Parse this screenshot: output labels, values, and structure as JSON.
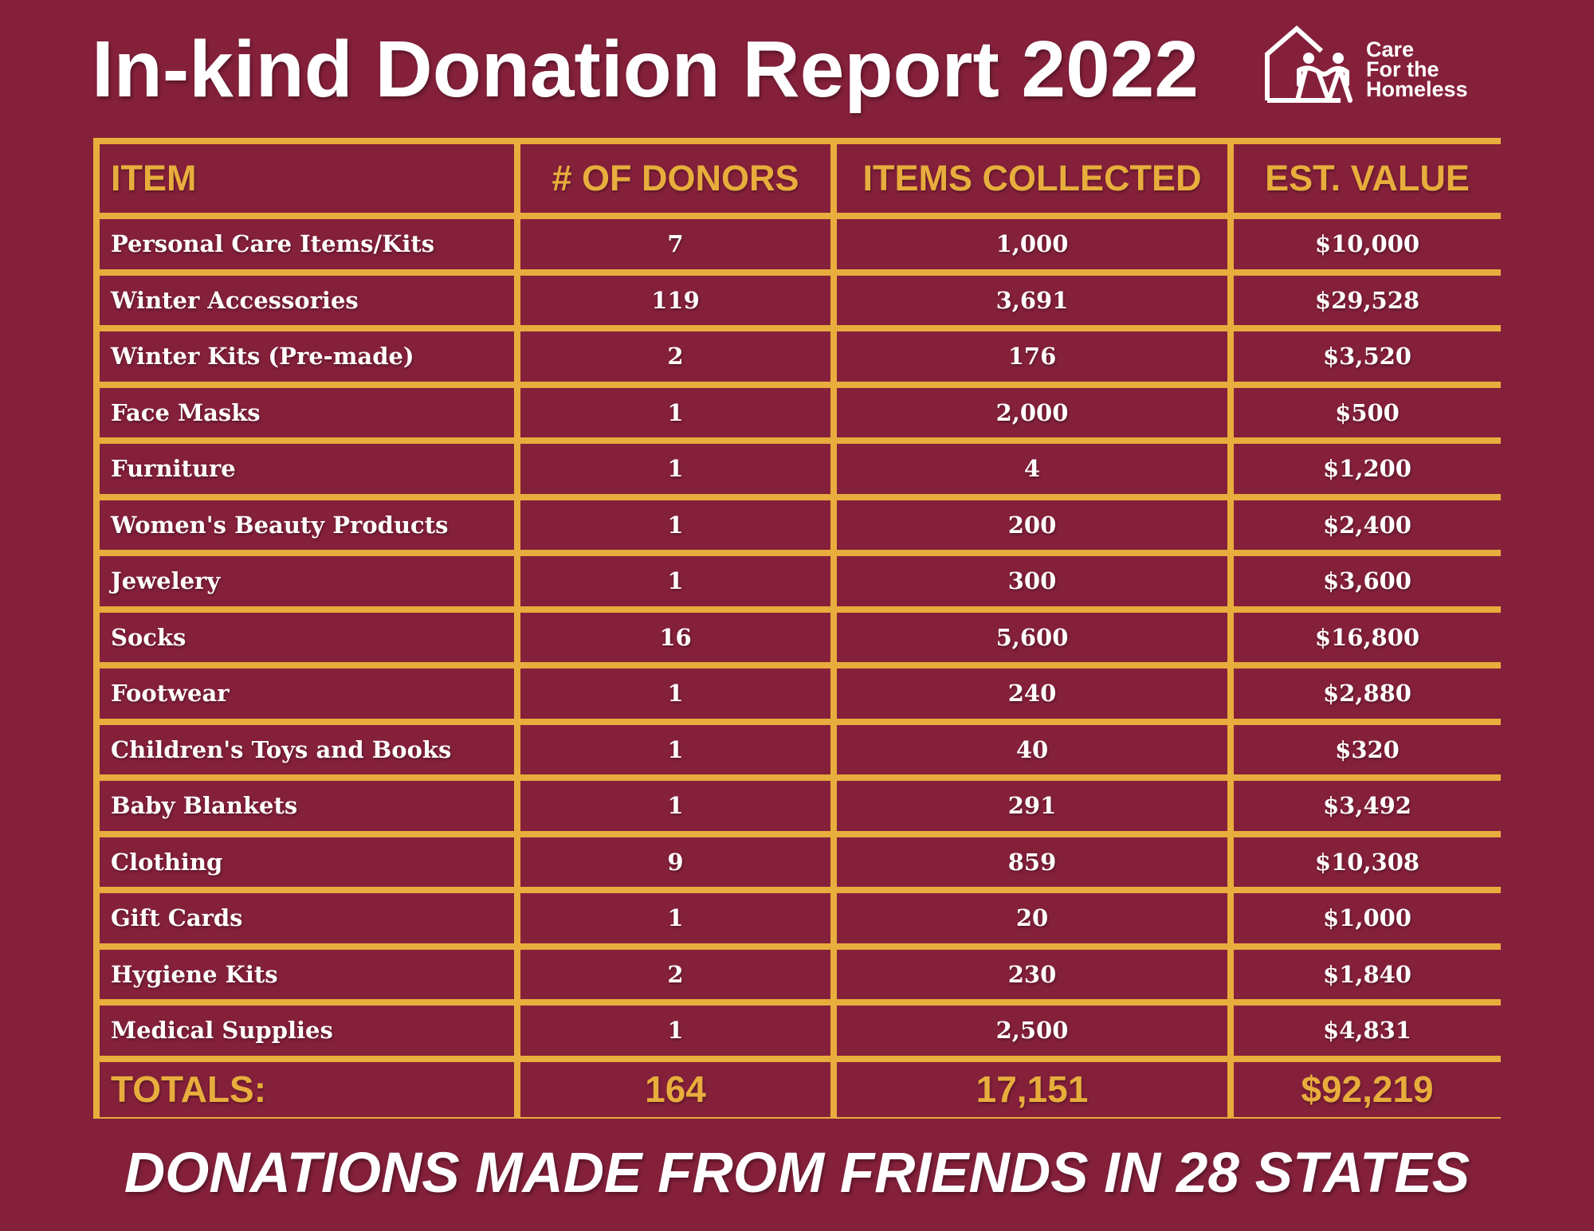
{
  "title": "In-kind Donation Report 2022",
  "logo": {
    "lines": [
      "Care",
      "For the",
      "Homeless"
    ]
  },
  "table": {
    "headers": [
      "ITEM",
      "# OF DONORS",
      "ITEMS COLLECTED",
      "EST. VALUE"
    ],
    "rows": [
      [
        "Personal Care Items/Kits",
        "7",
        "1,000",
        "$10,000"
      ],
      [
        "Winter Accessories",
        "119",
        "3,691",
        "$29,528"
      ],
      [
        "Winter Kits (Pre-made)",
        "2",
        "176",
        "$3,520"
      ],
      [
        "Face Masks",
        "1",
        "2,000",
        "$500"
      ],
      [
        "Furniture",
        "1",
        "4",
        "$1,200"
      ],
      [
        "Women's Beauty Products",
        "1",
        "200",
        "$2,400"
      ],
      [
        "Jewelery",
        "1",
        "300",
        "$3,600"
      ],
      [
        "Socks",
        "16",
        "5,600",
        "$16,800"
      ],
      [
        "Footwear",
        "1",
        "240",
        "$2,880"
      ],
      [
        "Children's Toys and Books",
        "1",
        "40",
        "$320"
      ],
      [
        "Baby Blankets",
        "1",
        "291",
        "$3,492"
      ],
      [
        "Clothing",
        "9",
        "859",
        "$10,308"
      ],
      [
        "Gift Cards",
        "1",
        "20",
        "$1,000"
      ],
      [
        "Hygiene Kits",
        "2",
        "230",
        "$1,840"
      ],
      [
        "Medical Supplies",
        "1",
        "2,500",
        "$4,831"
      ]
    ],
    "totals": [
      "TOTALS:",
      "164",
      "17,151",
      "$92,219"
    ]
  },
  "footer": "DONATIONS MADE FROM FRIENDS IN 28 STATES",
  "colors": {
    "background": "#85203b",
    "accent": "#e8ad3c"
  }
}
